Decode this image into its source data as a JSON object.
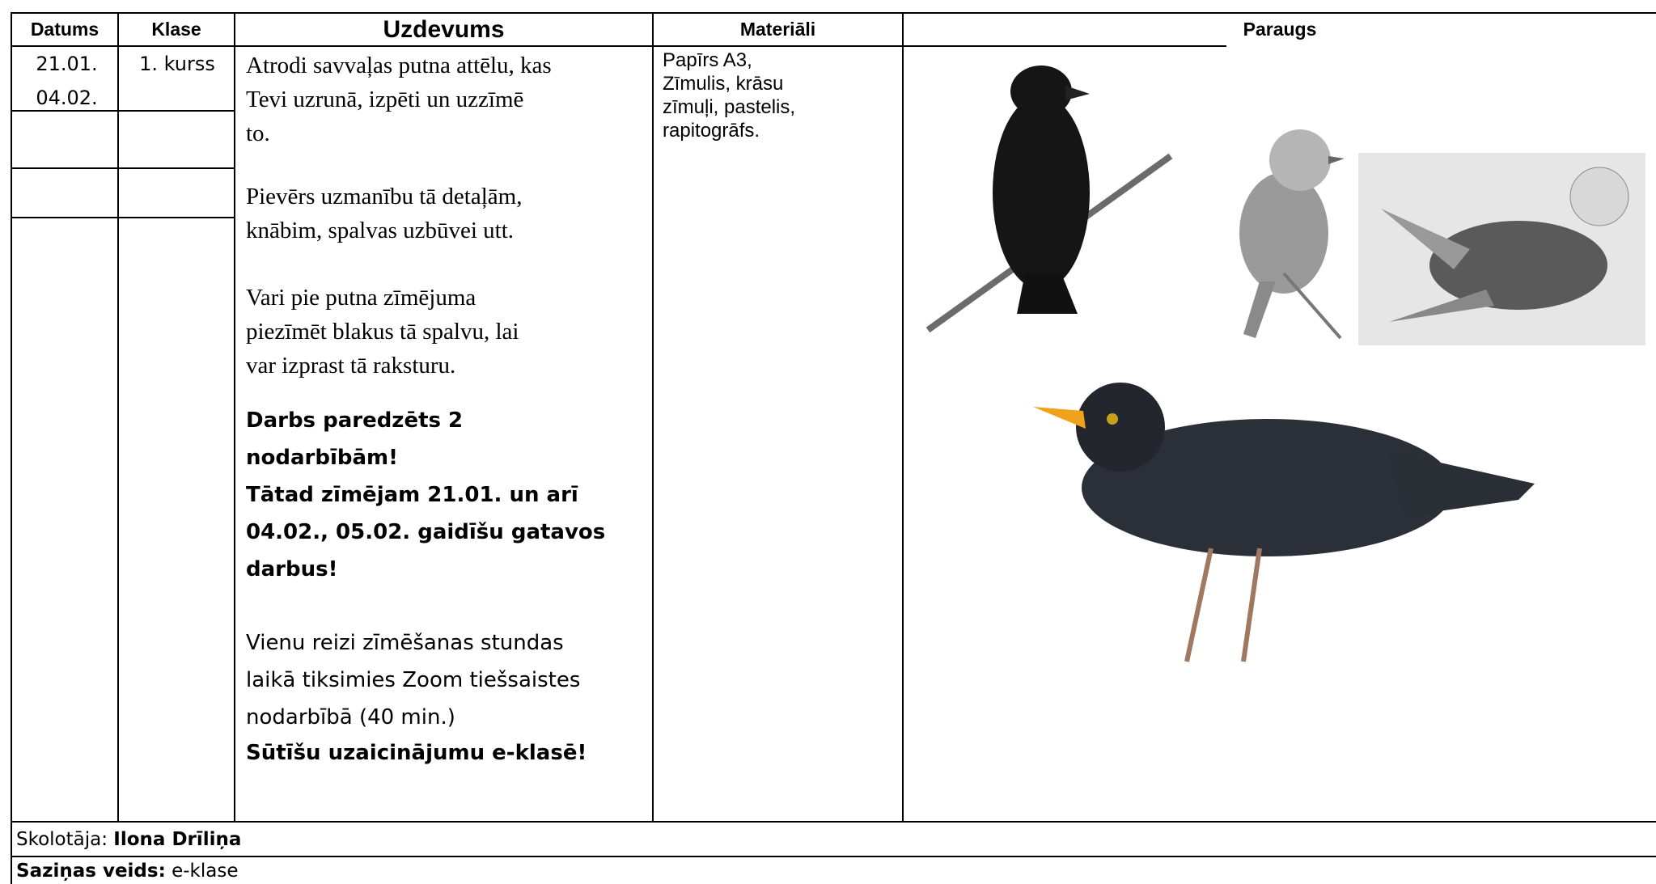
{
  "header": {
    "datums": "Datums",
    "klase": "Klase",
    "uzdevums": "Uzdevums",
    "materiali": "Materiāli",
    "paraugs": "Paraugs"
  },
  "row": {
    "dates": [
      "21.01.",
      "04.02."
    ],
    "klase": "1. kurss",
    "uzdevums": [
      {
        "style": "serif",
        "lines": [
          "Atrodi savvaļas putna attēlu, kas",
          "Tevi uzrunā, izpēti un uzzīmē",
          "to."
        ]
      },
      {
        "style": "serif",
        "lines": [
          "Pievērs uzmanību tā detaļām,",
          "knābim, spalvas uzbūvei utt."
        ]
      },
      {
        "style": "serif",
        "lines": [
          "Vari pie putna zīmējuma",
          "piezīmēt blakus tā spalvu, lai",
          "var izprast tā raksturu."
        ]
      },
      {
        "style": "bold",
        "lines": [
          "Darbs paredzēts 2",
          "nodarbībām!",
          "Tātad zīmējam 21.01. un arī",
          "04.02., 05.02. gaidīšu gatavos",
          "darbus!"
        ]
      },
      {
        "style": "sans",
        "lines": [
          "Vienu reizi zīmēšanas stundas",
          "laikā tiksimies Zoom tiešsaistes",
          "nodarbībā (40 min.)"
        ]
      },
      {
        "style": "bold",
        "lines": [
          "Sūtīšu uzaicinājumu e-klasē!"
        ]
      }
    ],
    "materiali": [
      "Papīrs A3,",
      "Zīmulis, krāsu",
      "zīmuļi, pastelis,",
      "rapitogrāfs."
    ]
  },
  "footer": {
    "teacher": {
      "label": "Skolotāja:",
      "name": "Ilona Drīliņa"
    },
    "contact": {
      "label": "Saziņas veids:",
      "value": "e-klase"
    }
  }
}
